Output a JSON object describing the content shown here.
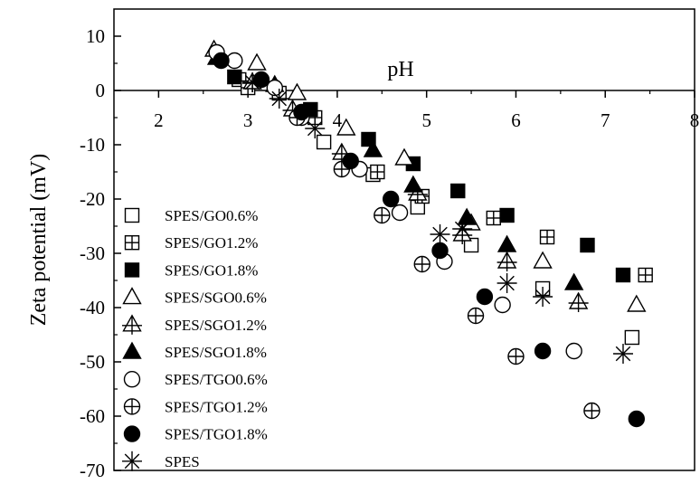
{
  "chart_data": {
    "type": "scatter",
    "title": "",
    "xlabel": "pH",
    "ylabel": "Zeta potential (mV)",
    "xlim": [
      1.5,
      8
    ],
    "ylim": [
      -70,
      15
    ],
    "xticks": [
      "2",
      "3",
      "4",
      "5",
      "6",
      "7",
      "8"
    ],
    "yticks": [
      "10",
      "0",
      "-10",
      "-20",
      "-30",
      "-40",
      "-50",
      "-60",
      "-70"
    ],
    "legend_position": "left",
    "series": [
      {
        "name": "SPES/GO0.6%",
        "marker": "square-open",
        "x": [
          2.9,
          3.35,
          3.85,
          4.4,
          4.9,
          5.5,
          6.3,
          7.3
        ],
        "y": [
          2.0,
          -0.5,
          -9.5,
          -15.5,
          -21.5,
          -28.5,
          -36.5,
          -45.5
        ]
      },
      {
        "name": "SPES/GO1.2%",
        "marker": "square-cross",
        "x": [
          3.0,
          3.75,
          4.45,
          4.95,
          5.75,
          6.35,
          7.45
        ],
        "y": [
          0.5,
          -5.0,
          -15.0,
          -19.5,
          -23.5,
          -27.0,
          -34.0
        ]
      },
      {
        "name": "SPES/GO1.8%",
        "marker": "square-filled",
        "x": [
          2.85,
          3.7,
          4.35,
          4.85,
          5.35,
          5.9,
          6.8,
          7.2
        ],
        "y": [
          2.5,
          -3.5,
          -9.0,
          -13.5,
          -18.5,
          -23.0,
          -28.5,
          -34.0
        ]
      },
      {
        "name": "SPES/SGO0.6%",
        "marker": "triangle-open",
        "x": [
          2.62,
          3.1,
          3.55,
          4.1,
          4.75,
          5.5,
          6.3,
          7.35
        ],
        "y": [
          7.5,
          5.0,
          -0.5,
          -7.0,
          -12.5,
          -24.5,
          -31.5,
          -39.5
        ]
      },
      {
        "name": "SPES/SGO1.2%",
        "marker": "triangle-cross",
        "x": [
          3.05,
          3.5,
          4.05,
          4.9,
          5.4,
          5.9,
          6.7
        ],
        "y": [
          1.5,
          -3.5,
          -11.5,
          -19.0,
          -26.5,
          -31.5,
          -39.0
        ]
      },
      {
        "name": "SPES/SGO1.8%",
        "marker": "triangle-filled",
        "x": [
          2.65,
          3.3,
          4.4,
          4.85,
          5.45,
          5.9,
          6.65
        ],
        "y": [
          6.0,
          1.0,
          -11.0,
          -17.5,
          -23.5,
          -28.5,
          -35.5
        ]
      },
      {
        "name": "SPES/TGO0.6%",
        "marker": "circle-open",
        "x": [
          2.65,
          2.85,
          3.3,
          3.6,
          4.25,
          4.7,
          5.2,
          5.85,
          6.65
        ],
        "y": [
          7.0,
          5.5,
          0.5,
          -5.0,
          -14.5,
          -22.5,
          -31.5,
          -39.5,
          -48.0
        ]
      },
      {
        "name": "SPES/TGO1.2%",
        "marker": "circle-cross",
        "x": [
          3.55,
          4.05,
          4.5,
          4.95,
          5.55,
          6.0,
          6.85
        ],
        "y": [
          -5.0,
          -14.5,
          -23.0,
          -32.0,
          -41.5,
          -49.0,
          -59.0
        ]
      },
      {
        "name": "SPES/TGO1.8%",
        "marker": "circle-filled",
        "x": [
          2.7,
          3.15,
          3.6,
          4.15,
          4.6,
          5.15,
          5.65,
          6.3,
          7.35
        ],
        "y": [
          5.5,
          2.0,
          -4.0,
          -13.0,
          -20.0,
          -29.5,
          -38.0,
          -48.0,
          -60.5
        ]
      },
      {
        "name": "SPES",
        "marker": "asterisk",
        "x": [
          3.05,
          3.35,
          3.75,
          5.15,
          5.4,
          5.9,
          6.3,
          7.2
        ],
        "y": [
          1.5,
          -1.5,
          -7.0,
          -26.5,
          -25.5,
          -35.5,
          -38.0,
          -48.5
        ]
      }
    ]
  }
}
